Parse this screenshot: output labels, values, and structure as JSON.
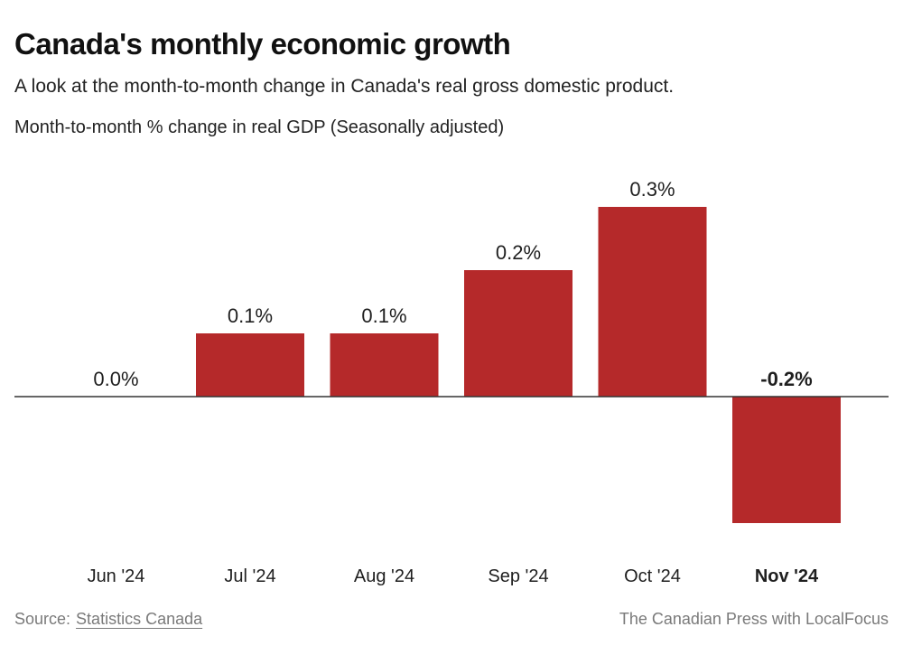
{
  "header": {
    "title": "Canada's monthly economic growth",
    "subtitle": "A look at the month-to-month change in Canada's real gross domestic product."
  },
  "footer": {
    "source_label": "Source:",
    "source_link": "Statistics Canada",
    "credit": "The Canadian Press with LocalFocus"
  },
  "colors": {
    "bar": "#b5292a",
    "baseline": "#333333"
  },
  "chart_data": {
    "type": "bar",
    "title": "Canada's monthly economic growth",
    "subtitle": "A look at the month-to-month change in Canada's real gross domestic product.",
    "ylabel": "Month-to-month % change in real GDP (Seasonally adjusted)",
    "xlabel": "",
    "categories": [
      "Jun '24",
      "Jul '24",
      "Aug '24",
      "Sep '24",
      "Oct '24",
      "Nov '24"
    ],
    "values": [
      0.0,
      0.1,
      0.1,
      0.2,
      0.3,
      -0.2
    ],
    "labels": [
      "0.0%",
      "0.1%",
      "0.1%",
      "0.2%",
      "0.3%",
      "-0.2%"
    ],
    "highlighted": [
      false,
      false,
      false,
      false,
      false,
      true
    ],
    "unit": "%",
    "ylim": [
      -0.2,
      0.3
    ],
    "grid": false,
    "legend": "none"
  }
}
